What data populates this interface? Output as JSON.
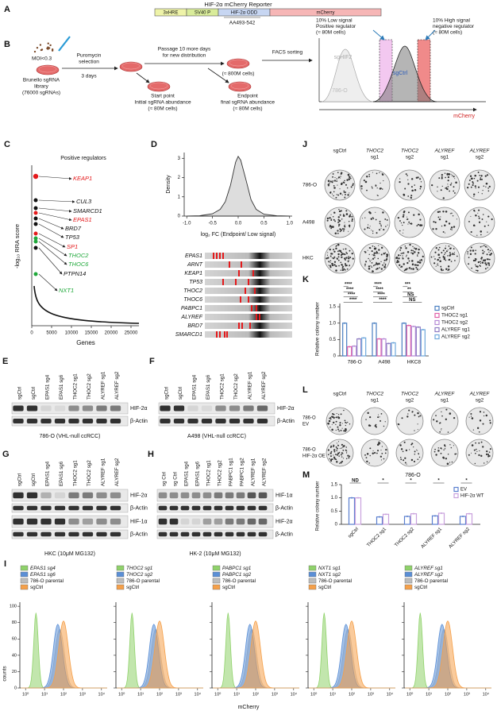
{
  "A": {
    "label": "A",
    "title": "HIF-2α mCherry Reporter",
    "elements": [
      "3xHRE",
      "SV40 P",
      "HIF-2α ODD",
      "mCherry"
    ],
    "note": "AA493-542"
  },
  "B": {
    "label": "B",
    "moi": "MOI<0.3",
    "library": [
      "Brunello sgRNA",
      "library",
      "(76000 sgRNAs)"
    ],
    "selection": [
      "Puromycin",
      "selection"
    ],
    "days": "3 days",
    "passage": [
      "Passage 10 more days",
      "for new distribution"
    ],
    "expanded": "(≈ 800M cells)",
    "start": [
      "Start point",
      "Initial sgRNA abundance",
      "(≈ 80M cells)"
    ],
    "end": [
      "Endpoint",
      "final sgRNA abundance",
      "(≈ 80M cells)"
    ],
    "facs": "FACS sorting",
    "low_gate": [
      "10% Low signal",
      "Positive regulator",
      "(≈ 80M cells)"
    ],
    "high_gate": [
      "10% High signal",
      "negative regulator",
      "(≈ 80M cells)"
    ],
    "histogram_labels": [
      "sgHIF2",
      "sgCtrl",
      "786-O"
    ],
    "xlabel": "mCherry"
  },
  "C": {
    "label": "C",
    "title": "Positive regulators",
    "ylabel": "-log₁₀ RRA score",
    "xlabel": "Genes",
    "xlim": [
      0,
      27000
    ],
    "xticks": [
      0,
      5000,
      10000,
      15000,
      20000,
      25000
    ],
    "hits": [
      {
        "gene": "KEAP1",
        "color": "#e41a1c"
      },
      {
        "gene": "CUL3",
        "color": "#111111"
      },
      {
        "gene": "SMARCD1",
        "color": "#111111"
      },
      {
        "gene": "EPAS1",
        "color": "#e41a1c"
      },
      {
        "gene": "BRD7",
        "color": "#111111"
      },
      {
        "gene": "TP53",
        "color": "#111111"
      },
      {
        "gene": "SP1",
        "color": "#e41a1c"
      },
      {
        "gene": "THOC2",
        "color": "#1fa83a"
      },
      {
        "gene": "THOC6",
        "color": "#1fa83a"
      },
      {
        "gene": "PTPN14",
        "color": "#111111"
      },
      {
        "gene": "NXT1",
        "color": "#1fa83a"
      }
    ]
  },
  "D": {
    "label": "D",
    "ylabel": "Density",
    "xlabel": "log₂ FC (Endpoint/ Low signal)",
    "xlim": [
      -1.05,
      1.05
    ],
    "ylim": [
      0,
      3.3
    ],
    "xticks": [
      {
        "value": -1,
        "label": "-1.0"
      },
      -0.5,
      {
        "value": 0,
        "label": "0.0"
      },
      0.5,
      {
        "value": 1,
        "label": "1.0"
      }
    ],
    "yticks": [
      0,
      1,
      2,
      3
    ],
    "x": [
      -1,
      -0.75,
      -0.5,
      -0.35,
      -0.25,
      -0.15,
      -0.05,
      0,
      0.05,
      0.15,
      0.25,
      0.35,
      0.5,
      0.75,
      1
    ],
    "density": [
      0,
      0.02,
      0.12,
      0.35,
      0.75,
      1.6,
      2.8,
      3.1,
      2.9,
      1.9,
      0.85,
      0.35,
      0.1,
      0.02,
      0
    ],
    "genes": [
      "EPAS1",
      "ARNT",
      "KEAP1",
      "TP53",
      "THOC2",
      "THOC6",
      "PABPC1",
      "ALYREF",
      "BRD7",
      "SMARCD1"
    ]
  },
  "E": {
    "label": "E",
    "lanes": [
      "sgCtrl",
      "sgCtrl",
      "EPAS1 sg4",
      "EPAS1 sg6",
      "THOC2 sg1",
      "THOC2 sg2",
      "ALYREF sg1",
      "ALYREF sg2"
    ],
    "bands": [
      "HIF-2α",
      "β-Actin"
    ],
    "caption": "786-O (VHL-null ccRCC)"
  },
  "F": {
    "label": "F",
    "lanes": [
      "sgCtrl",
      "sgCtrl",
      "EPAS1 sg4",
      "EPAS1 sg6",
      "THOC2 sg1",
      "THOC2 sg2",
      "ALYREF sg1",
      "ALYREF sg2"
    ],
    "bands": [
      "HIF-2α",
      "β-Actin"
    ],
    "caption": "A498 (VHL-null ccRCC)"
  },
  "G": {
    "label": "G",
    "lanes": [
      "sgCtrl",
      "sgCtrl",
      "EPAS1 sg4",
      "EPAS1 sg6",
      "THOC2 sg1",
      "THOC2 sg2",
      "ALYREF sg1",
      "ALYREF sg2"
    ],
    "bands": [
      "HIF-2α",
      "β-Actin",
      "HIF-1α",
      "β-Actin"
    ],
    "caption": "HKC (10μM MG132)"
  },
  "H": {
    "label": "H",
    "lanes": [
      "sg Ctrl",
      "sg Ctrl",
      "EPAS1 sg4",
      "EPAS1 sg6",
      "THOC2 sg1",
      "THOC2 sg2",
      "PABPC1 sg1",
      "PABPC1 sg2",
      "ALYREF sg1",
      "ALYREF sg2"
    ],
    "bands": [
      "HIF-1α",
      "β-Actin",
      "HIF-2α",
      "β-Actin"
    ],
    "caption": "HK-2 (10μM MG132)"
  },
  "I": {
    "label": "I",
    "ylabel": "counts",
    "xlabel": "mCherry",
    "xscale": "log",
    "xlim": [
      0.5,
      20000
    ],
    "ylim": [
      0,
      105
    ],
    "yticks": [
      0,
      20,
      40,
      60,
      80,
      100
    ],
    "xticks": [
      {
        "value": 1,
        "label": "10⁰"
      },
      {
        "value": 10,
        "label": "10¹"
      },
      {
        "value": 100,
        "label": "10²"
      },
      {
        "value": 1000,
        "label": "10³"
      },
      {
        "value": 10000,
        "label": "10⁴"
      }
    ],
    "panels": [
      {
        "legend": [
          {
            "name": "EPAS1 sg4",
            "color": "#8fd26a"
          },
          {
            "name": "EPAS1 sg6",
            "color": "#5b8fd6"
          },
          {
            "name": "786-O parental",
            "color": "#bdbdbd"
          },
          {
            "name": "sgCtrl",
            "color": "#f5a04a"
          }
        ]
      },
      {
        "legend": [
          {
            "name": "THOC2 sg1",
            "color": "#8fd26a"
          },
          {
            "name": "THOC2 sg2",
            "color": "#5b8fd6"
          },
          {
            "name": "786-O parental",
            "color": "#bdbdbd"
          },
          {
            "name": "sgCtrl",
            "color": "#f5a04a"
          }
        ]
      },
      {
        "legend": [
          {
            "name": "PABPC1 sg1",
            "color": "#8fd26a"
          },
          {
            "name": "PABPC1 sg2",
            "color": "#5b8fd6"
          },
          {
            "name": "786-O parental",
            "color": "#bdbdbd"
          },
          {
            "name": "sgCtrl",
            "color": "#f5a04a"
          }
        ]
      },
      {
        "legend": [
          {
            "name": "NXT1 sg1",
            "color": "#8fd26a"
          },
          {
            "name": "NXT1 sg2",
            "color": "#5b8fd6"
          },
          {
            "name": "786-O parental",
            "color": "#bdbdbd"
          },
          {
            "name": "sgCtrl",
            "color": "#f5a04a"
          }
        ]
      },
      {
        "legend": [
          {
            "name": "ALYREF sg1",
            "color": "#8fd26a"
          },
          {
            "name": "ALYREF sg2",
            "color": "#5b8fd6"
          },
          {
            "name": "786-O parental",
            "color": "#bdbdbd"
          },
          {
            "name": "sgCtrl",
            "color": "#f5a04a"
          }
        ]
      }
    ]
  },
  "J": {
    "label": "J",
    "columns": [
      [
        "sgCtrl"
      ],
      [
        "THOC2",
        "sg1"
      ],
      [
        "THOC2",
        "sg2"
      ],
      [
        "ALYREF",
        "sg1"
      ],
      [
        "ALYREF",
        "sg2"
      ]
    ],
    "rows": [
      "786-O",
      "A498",
      "HKC"
    ]
  },
  "K": {
    "label": "K",
    "type": "bar",
    "ylabel": "Relative colony number",
    "ylim": [
      0,
      1.6
    ],
    "yticks": [
      0,
      0.5,
      {
        "value": 1,
        "label": "1.0"
      },
      1.5
    ],
    "categories": [
      "786-O",
      "A498",
      "HKC8"
    ],
    "series": [
      {
        "name": "sgCtrl",
        "color": "#4a7fc1",
        "values": [
          1,
          1,
          1
        ]
      },
      {
        "name": "THOC2 sg1",
        "color": "#e05fa8",
        "values": [
          0.28,
          0.52,
          0.93
        ]
      },
      {
        "name": "THOC2 sg2",
        "color": "#b58ad6",
        "values": [
          0.3,
          0.52,
          0.9
        ]
      },
      {
        "name": "ALYREF sg1",
        "color": "#8e7cc3",
        "values": [
          0.52,
          0.38,
          0.88
        ]
      },
      {
        "name": "ALYREF sg2",
        "color": "#6fa8dc",
        "values": [
          0.55,
          0.4,
          0.8
        ]
      }
    ],
    "significance": [
      [
        "****",
        "****",
        "****",
        "****"
      ],
      [
        "****",
        "****",
        "****",
        "****"
      ],
      [
        "***",
        "**",
        "NS",
        "NS"
      ]
    ]
  },
  "L": {
    "label": "L",
    "columns": [
      [
        "sgCtrl"
      ],
      [
        "THOC2",
        "sg1"
      ],
      [
        "THOC2",
        "sg2"
      ],
      [
        "ALYREF",
        "sg1"
      ],
      [
        "ALYREF",
        "sg2"
      ]
    ],
    "rows": [
      [
        "786-O",
        "EV"
      ],
      [
        "786-O",
        "HIF-2α OE"
      ]
    ]
  },
  "M": {
    "label": "M",
    "type": "bar",
    "title": "786-O",
    "ylabel": "Relative colony number",
    "ylim": [
      0,
      1.5
    ],
    "yticks": [
      0,
      0.5,
      {
        "value": 1,
        "label": "1.0"
      },
      1.5
    ],
    "categories": [
      "sgCtrl",
      "THOC2 sg1",
      "THOC2 sg2",
      "ALYREF sg1",
      "ALYREF sg2"
    ],
    "series": [
      {
        "name": "EV",
        "color": "#5b7fcf",
        "values": [
          1,
          0.28,
          0.3,
          0.32,
          0.3
        ]
      },
      {
        "name": "HIF-2α WT",
        "color": "#c9a0dc",
        "values": [
          1,
          0.38,
          0.4,
          0.42,
          0.4
        ]
      }
    ],
    "significance": [
      "ND",
      "*",
      "*",
      "*",
      "*"
    ]
  }
}
